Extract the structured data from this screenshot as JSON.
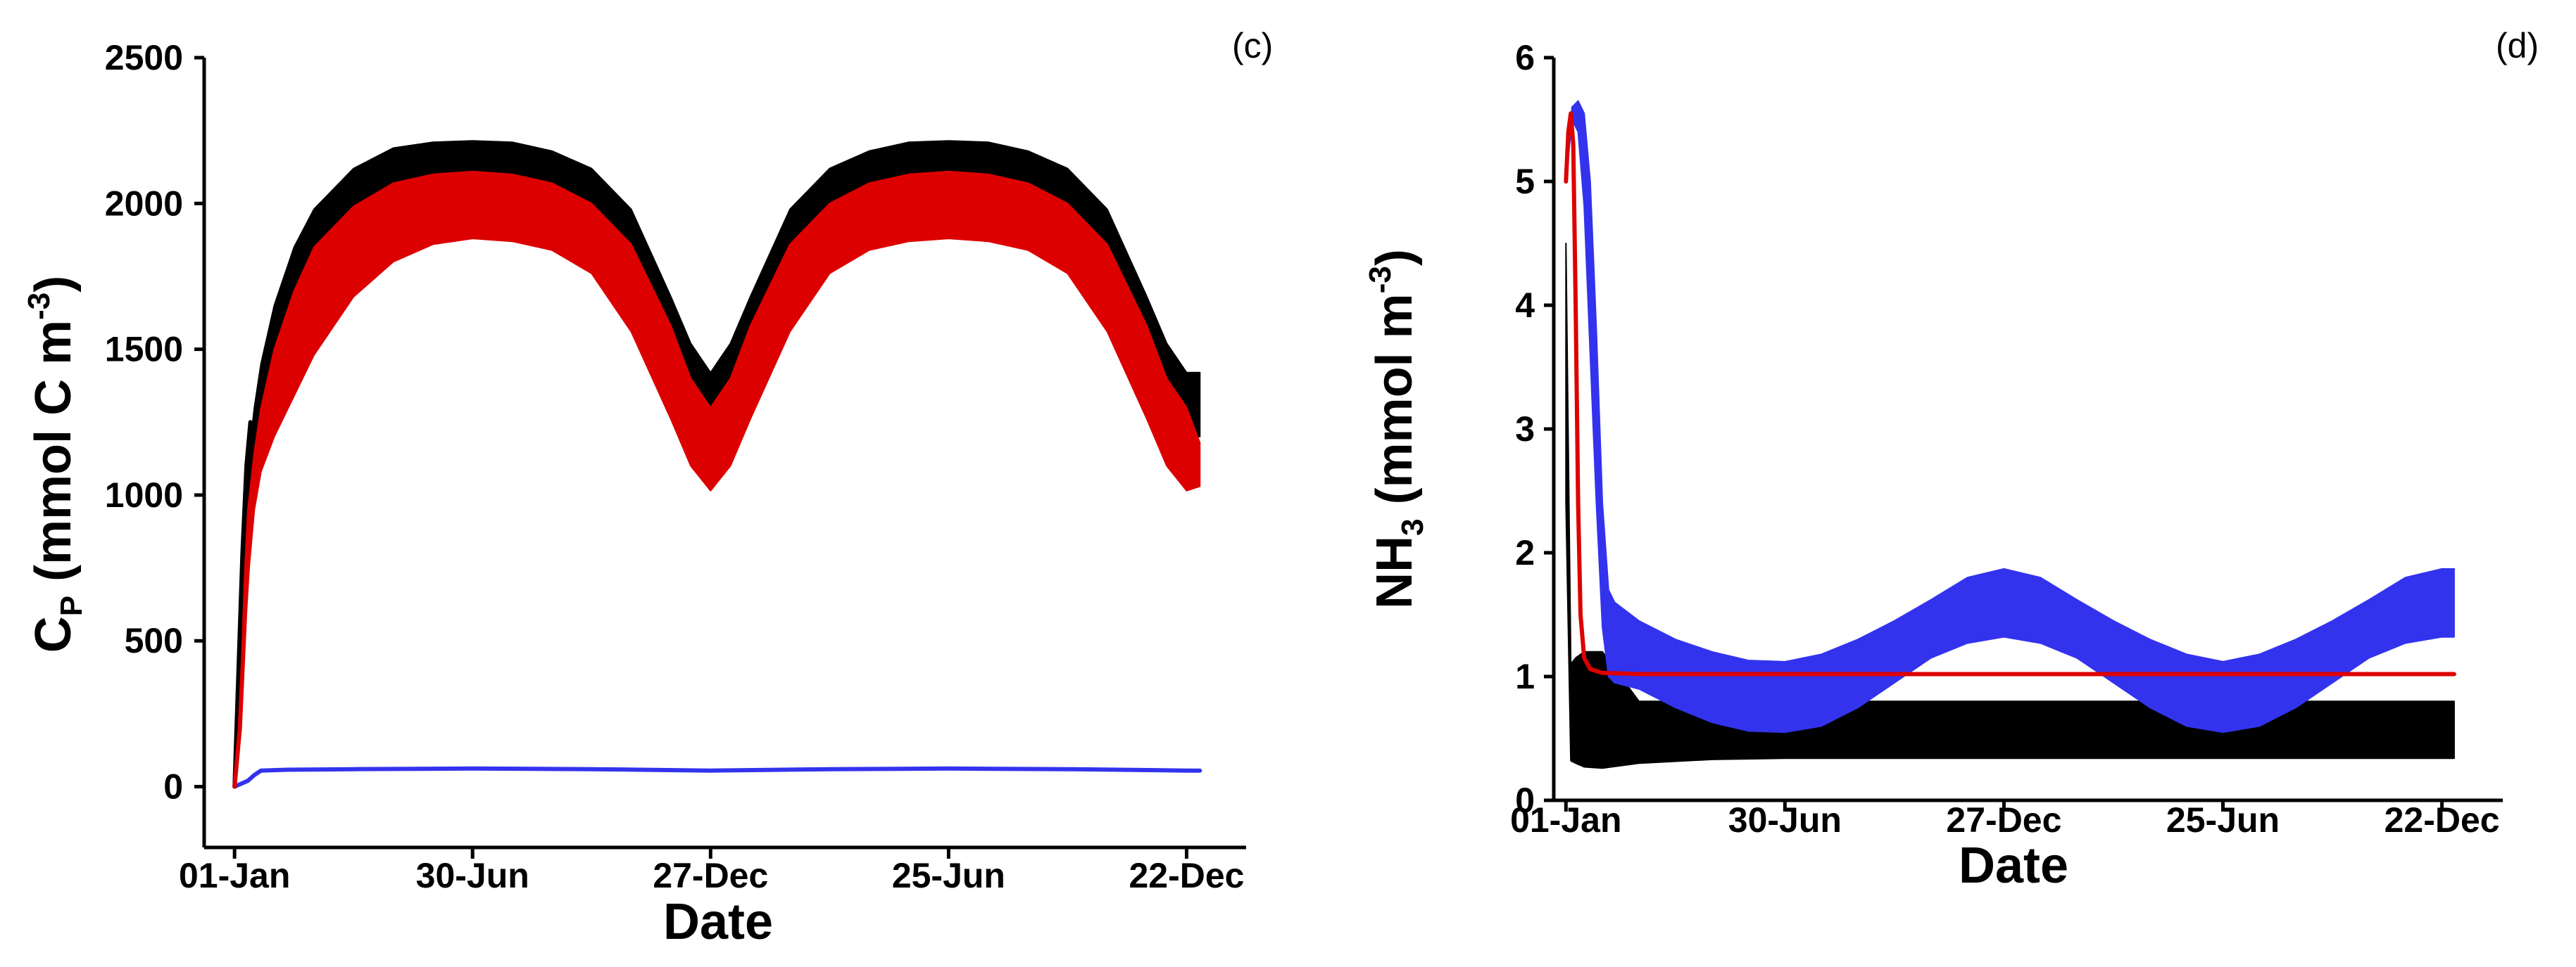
{
  "chart_data": [
    {
      "type": "area",
      "panel_label": "(c)",
      "xlabel": "Date",
      "ylabel_parts": {
        "base": "C",
        "sub": "P",
        "middle": " (mmol C m",
        "sup": "-3",
        "end": ")"
      },
      "x_tick_labels": [
        "01-Jan",
        "30-Jun",
        "27-Dec",
        "25-Jun",
        "22-Dec"
      ],
      "x_tick_days": [
        0,
        180,
        360,
        540,
        720
      ],
      "xlim": [
        -15,
        765
      ],
      "ylim": [
        -100,
        2500
      ],
      "y_ticks": [
        0,
        500,
        1000,
        1500,
        2000,
        2500
      ],
      "grid": false,
      "series": [
        {
          "kind": "band",
          "color": "#000000",
          "x": [
            0,
            5,
            10,
            15,
            20,
            30,
            45,
            60,
            90,
            120,
            150,
            180,
            210,
            240,
            270,
            300,
            330,
            345,
            360,
            375,
            390,
            420,
            450,
            480,
            510,
            540,
            570,
            600,
            630,
            660,
            690,
            705,
            720,
            730
          ],
          "lower": [
            0,
            350,
            800,
            1050,
            1200,
            1380,
            1560,
            1700,
            1850,
            1900,
            1900,
            1900,
            1900,
            1880,
            1820,
            1680,
            1400,
            1270,
            1210,
            1270,
            1400,
            1680,
            1820,
            1880,
            1900,
            1900,
            1900,
            1880,
            1820,
            1680,
            1400,
            1270,
            1210,
            1200
          ],
          "upper": [
            0,
            600,
            1100,
            1300,
            1450,
            1650,
            1850,
            1980,
            2120,
            2190,
            2210,
            2215,
            2210,
            2180,
            2120,
            1980,
            1680,
            1520,
            1420,
            1520,
            1680,
            1980,
            2120,
            2180,
            2210,
            2215,
            2210,
            2180,
            2120,
            1980,
            1680,
            1520,
            1420,
            1420
          ]
        },
        {
          "kind": "band",
          "color": "#dd0000",
          "x": [
            0,
            5,
            10,
            15,
            20,
            30,
            45,
            60,
            90,
            120,
            150,
            180,
            210,
            240,
            270,
            300,
            330,
            345,
            360,
            375,
            390,
            420,
            450,
            480,
            510,
            540,
            570,
            600,
            630,
            660,
            690,
            705,
            720,
            730
          ],
          "lower": [
            0,
            300,
            700,
            950,
            1080,
            1200,
            1340,
            1480,
            1680,
            1800,
            1860,
            1880,
            1870,
            1840,
            1760,
            1560,
            1260,
            1100,
            1015,
            1100,
            1260,
            1560,
            1760,
            1840,
            1870,
            1880,
            1870,
            1840,
            1760,
            1560,
            1260,
            1100,
            1015,
            1030
          ],
          "upper": [
            0,
            500,
            950,
            1150,
            1300,
            1500,
            1700,
            1850,
            1990,
            2070,
            2100,
            2110,
            2100,
            2070,
            2000,
            1860,
            1580,
            1400,
            1300,
            1400,
            1580,
            1860,
            2000,
            2070,
            2100,
            2110,
            2100,
            2070,
            2000,
            1860,
            1580,
            1400,
            1300,
            1180
          ]
        },
        {
          "kind": "line",
          "color": "#3333ee",
          "x": [
            0,
            5,
            10,
            15,
            20,
            40,
            90,
            180,
            270,
            360,
            450,
            540,
            630,
            720,
            730
          ],
          "y": [
            0,
            10,
            20,
            40,
            55,
            58,
            60,
            62,
            60,
            55,
            60,
            62,
            60,
            55,
            55
          ]
        },
        {
          "kind": "line",
          "color": "#000000",
          "x": [
            0,
            3,
            6,
            9,
            12
          ],
          "y": [
            0,
            400,
            800,
            1100,
            1250
          ]
        },
        {
          "kind": "line",
          "color": "#dd0000",
          "x": [
            0,
            4,
            8,
            12,
            16,
            20
          ],
          "y": [
            0,
            200,
            600,
            900,
            1050,
            1150
          ]
        }
      ]
    },
    {
      "type": "area",
      "panel_label": "(d)",
      "xlabel": "Date",
      "ylabel_parts": {
        "base": "NH",
        "sub": "3",
        "middle": " (mmol m",
        "sup": "-3",
        "end": ")"
      },
      "x_tick_labels": [
        "01-Jan",
        "30-Jun",
        "27-Dec",
        "25-Jun",
        "22-Dec"
      ],
      "x_tick_days": [
        0,
        180,
        360,
        540,
        720
      ],
      "xlim": [
        -10,
        770
      ],
      "ylim": [
        0,
        6
      ],
      "y_ticks": [
        0,
        1,
        2,
        3,
        4,
        5,
        6
      ],
      "grid": false,
      "series": [
        {
          "kind": "band",
          "color": "#000000",
          "x": [
            0,
            4,
            8,
            15,
            30,
            60,
            120,
            180,
            360,
            540,
            730
          ],
          "lower": [
            2.4,
            0.32,
            0.3,
            0.27,
            0.26,
            0.3,
            0.33,
            0.34,
            0.34,
            0.34,
            0.34
          ],
          "upper": [
            4.5,
            1.1,
            1.15,
            1.2,
            1.2,
            0.8,
            0.8,
            0.8,
            0.8,
            0.8,
            0.8
          ]
        },
        {
          "kind": "band",
          "color": "#3333ee",
          "x": [
            0,
            5,
            10,
            15,
            20,
            25,
            30,
            35,
            40,
            60,
            90,
            120,
            150,
            180,
            210,
            240,
            270,
            300,
            330,
            360,
            390,
            420,
            450,
            480,
            510,
            540,
            570,
            600,
            630,
            660,
            690,
            720,
            730
          ],
          "lower": [
            5.0,
            5.5,
            5.4,
            4.8,
            3.6,
            2.4,
            1.4,
            1.0,
            0.95,
            0.9,
            0.75,
            0.63,
            0.56,
            0.55,
            0.6,
            0.75,
            0.95,
            1.15,
            1.27,
            1.32,
            1.27,
            1.15,
            0.95,
            0.75,
            0.6,
            0.55,
            0.6,
            0.75,
            0.95,
            1.15,
            1.27,
            1.32,
            1.32
          ],
          "upper": [
            5.0,
            5.6,
            5.65,
            5.55,
            5.0,
            3.8,
            2.4,
            1.7,
            1.6,
            1.45,
            1.3,
            1.2,
            1.13,
            1.12,
            1.18,
            1.3,
            1.45,
            1.62,
            1.8,
            1.87,
            1.8,
            1.62,
            1.45,
            1.3,
            1.18,
            1.12,
            1.18,
            1.3,
            1.45,
            1.62,
            1.8,
            1.87,
            1.87
          ]
        },
        {
          "kind": "line",
          "color": "#dd0000",
          "x": [
            0,
            2,
            4,
            6,
            8,
            10,
            12,
            15,
            20,
            30,
            60,
            120,
            180,
            360,
            540,
            730
          ],
          "y": [
            5.0,
            5.4,
            5.55,
            5.3,
            4.0,
            2.4,
            1.5,
            1.15,
            1.06,
            1.03,
            1.02,
            1.02,
            1.02,
            1.02,
            1.02,
            1.02
          ]
        }
      ]
    }
  ]
}
